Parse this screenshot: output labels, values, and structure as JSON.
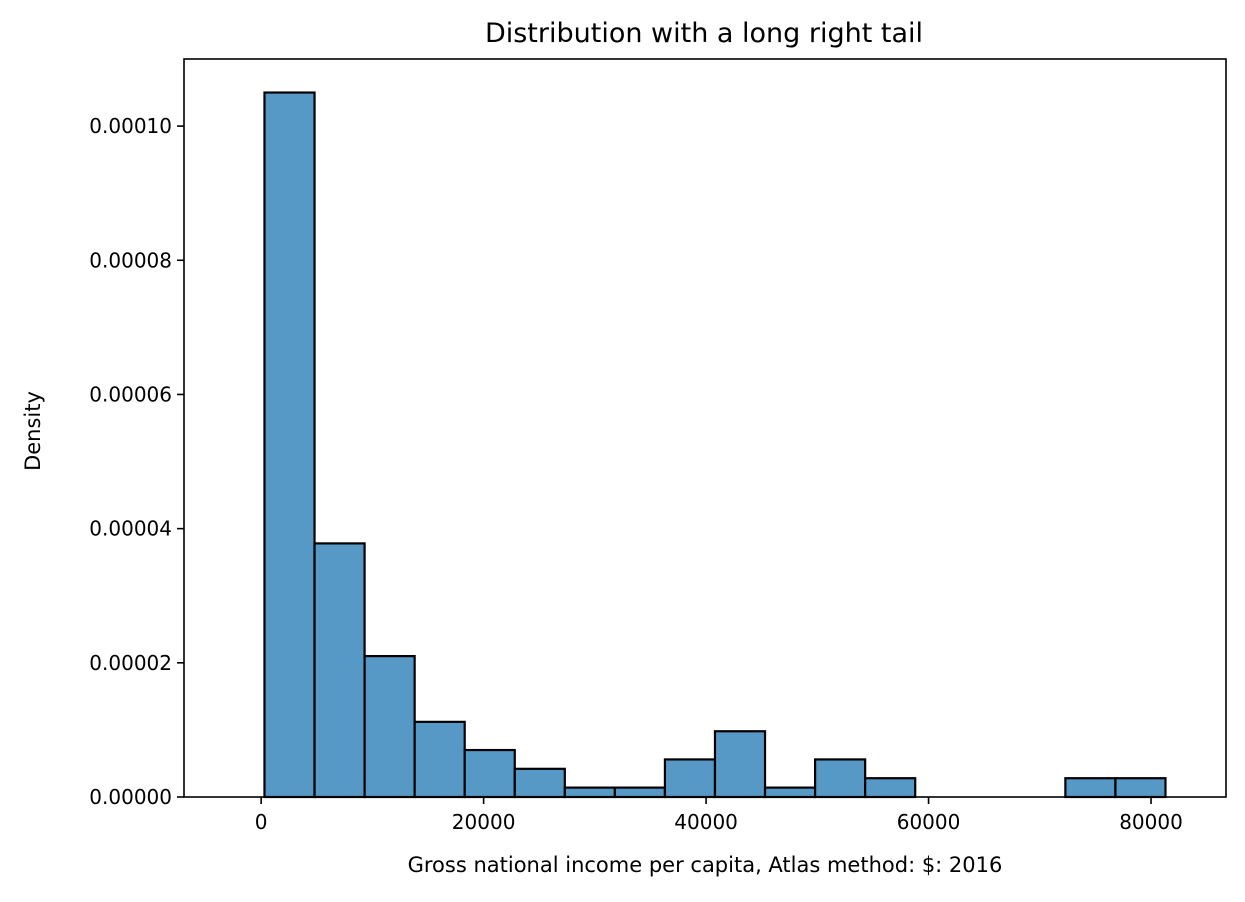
{
  "chart_data": {
    "type": "bar",
    "title": "Distribution with a long right tail",
    "xlabel": "Gross national income per capita, Atlas method: $: 2016",
    "ylabel": "Density",
    "xlim": [
      -6935,
      86740
    ],
    "ylim": [
      0,
      0.00011
    ],
    "x_ticks": [
      0,
      20000,
      40000,
      60000,
      80000
    ],
    "x_tick_labels": [
      "0",
      "20000",
      "40000",
      "60000",
      "80000"
    ],
    "y_ticks": [
      0,
      2e-05,
      4e-05,
      6e-05,
      8e-05,
      0.0001
    ],
    "y_tick_labels": [
      "0.00000",
      "0.00002",
      "0.00004",
      "0.00006",
      "0.00008",
      "0.00010"
    ],
    "bins": [
      {
        "start": 300,
        "end": 4800,
        "density": 0.000105
      },
      {
        "start": 4800,
        "end": 9300,
        "density": 3.78e-05
      },
      {
        "start": 9300,
        "end": 13800,
        "density": 2.1e-05
      },
      {
        "start": 13800,
        "end": 18300,
        "density": 1.12e-05
      },
      {
        "start": 18300,
        "end": 22800,
        "density": 7e-06
      },
      {
        "start": 22800,
        "end": 27300,
        "density": 4.2e-06
      },
      {
        "start": 27300,
        "end": 31800,
        "density": 1.4e-06
      },
      {
        "start": 31800,
        "end": 36300,
        "density": 1.4e-06
      },
      {
        "start": 36300,
        "end": 40800,
        "density": 5.6e-06
      },
      {
        "start": 40800,
        "end": 45300,
        "density": 9.8e-06
      },
      {
        "start": 45300,
        "end": 49800,
        "density": 1.4e-06
      },
      {
        "start": 49800,
        "end": 54300,
        "density": 5.6e-06
      },
      {
        "start": 54300,
        "end": 58800,
        "density": 2.8e-06
      },
      {
        "start": 58800,
        "end": 63300,
        "density": 0
      },
      {
        "start": 63300,
        "end": 67800,
        "density": 0
      },
      {
        "start": 67800,
        "end": 72300,
        "density": 0
      },
      {
        "start": 72300,
        "end": 76800,
        "density": 2.8e-06
      },
      {
        "start": 76800,
        "end": 81300,
        "density": 2.8e-06
      }
    ],
    "bar_color": "#5799c6",
    "edge_color": "#000000",
    "grid": false,
    "legend": "none"
  }
}
